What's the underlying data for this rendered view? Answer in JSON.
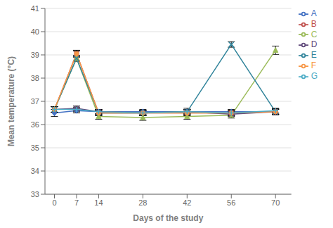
{
  "chart_data": {
    "type": "line",
    "xlabel": "Days of the study",
    "ylabel": "Mean temperature (°C)",
    "x": [
      0,
      7,
      14,
      28,
      42,
      56,
      70
    ],
    "xlim": [
      -3,
      75
    ],
    "xticks": [
      0,
      7,
      14,
      28,
      42,
      56,
      70
    ],
    "ylim": [
      33,
      41
    ],
    "yticks": [
      33,
      34,
      35,
      36,
      37,
      38,
      39,
      40,
      41
    ],
    "grid": true,
    "legend": "right",
    "series": [
      {
        "name": "A",
        "color": "#4472C4",
        "marker": "diamond",
        "line_style": "solid",
        "values": [
          36.5,
          36.6,
          36.55,
          36.55,
          36.55,
          36.55,
          36.55
        ],
        "yerr": [
          0.15,
          0.1,
          0.1,
          0.1,
          0.1,
          0.1,
          0.1
        ]
      },
      {
        "name": "B",
        "color": "#C0504D",
        "marker": "square",
        "line_style": "solid",
        "values": [
          36.65,
          39.05,
          36.5,
          36.5,
          36.5,
          36.5,
          36.55
        ],
        "yerr": [
          0.12,
          0.15,
          0.12,
          0.12,
          0.12,
          0.12,
          0.12
        ]
      },
      {
        "name": "C",
        "color": "#9BBB59",
        "marker": "triangle",
        "line_style": "solid",
        "values": [
          36.65,
          38.85,
          36.35,
          36.3,
          36.35,
          36.4,
          39.2
        ],
        "yerr": [
          0.12,
          0.12,
          0.12,
          0.12,
          0.12,
          0.12,
          0.18
        ]
      },
      {
        "name": "D",
        "color": "#604A7B",
        "marker": "x",
        "line_style": "solid",
        "values": [
          36.65,
          36.7,
          36.55,
          36.5,
          36.55,
          36.45,
          36.55
        ],
        "yerr": [
          0.12,
          0.1,
          0.1,
          0.1,
          0.15,
          0.1,
          0.1
        ]
      },
      {
        "name": "E",
        "color": "#31849B",
        "marker": "x",
        "line_style": "solid",
        "values": [
          36.65,
          38.85,
          36.5,
          36.5,
          36.55,
          39.45,
          36.55
        ],
        "yerr": [
          0.12,
          0.12,
          0.1,
          0.1,
          0.1,
          0.12,
          0.12
        ]
      },
      {
        "name": "F",
        "color": "#F79646",
        "marker": "circle",
        "line_style": "solid",
        "values": [
          36.65,
          39.05,
          36.5,
          36.5,
          36.5,
          36.5,
          36.55
        ],
        "yerr": [
          0.12,
          0.12,
          0.12,
          0.12,
          0.12,
          0.12,
          0.12
        ]
      },
      {
        "name": "G",
        "color": "#4BACC6",
        "marker": "plus",
        "line_style": "solid",
        "values": [
          36.65,
          36.65,
          36.55,
          36.5,
          36.55,
          36.5,
          36.6
        ],
        "yerr": [
          0.12,
          0.1,
          0.1,
          0.1,
          0.1,
          0.1,
          0.1
        ]
      }
    ]
  }
}
